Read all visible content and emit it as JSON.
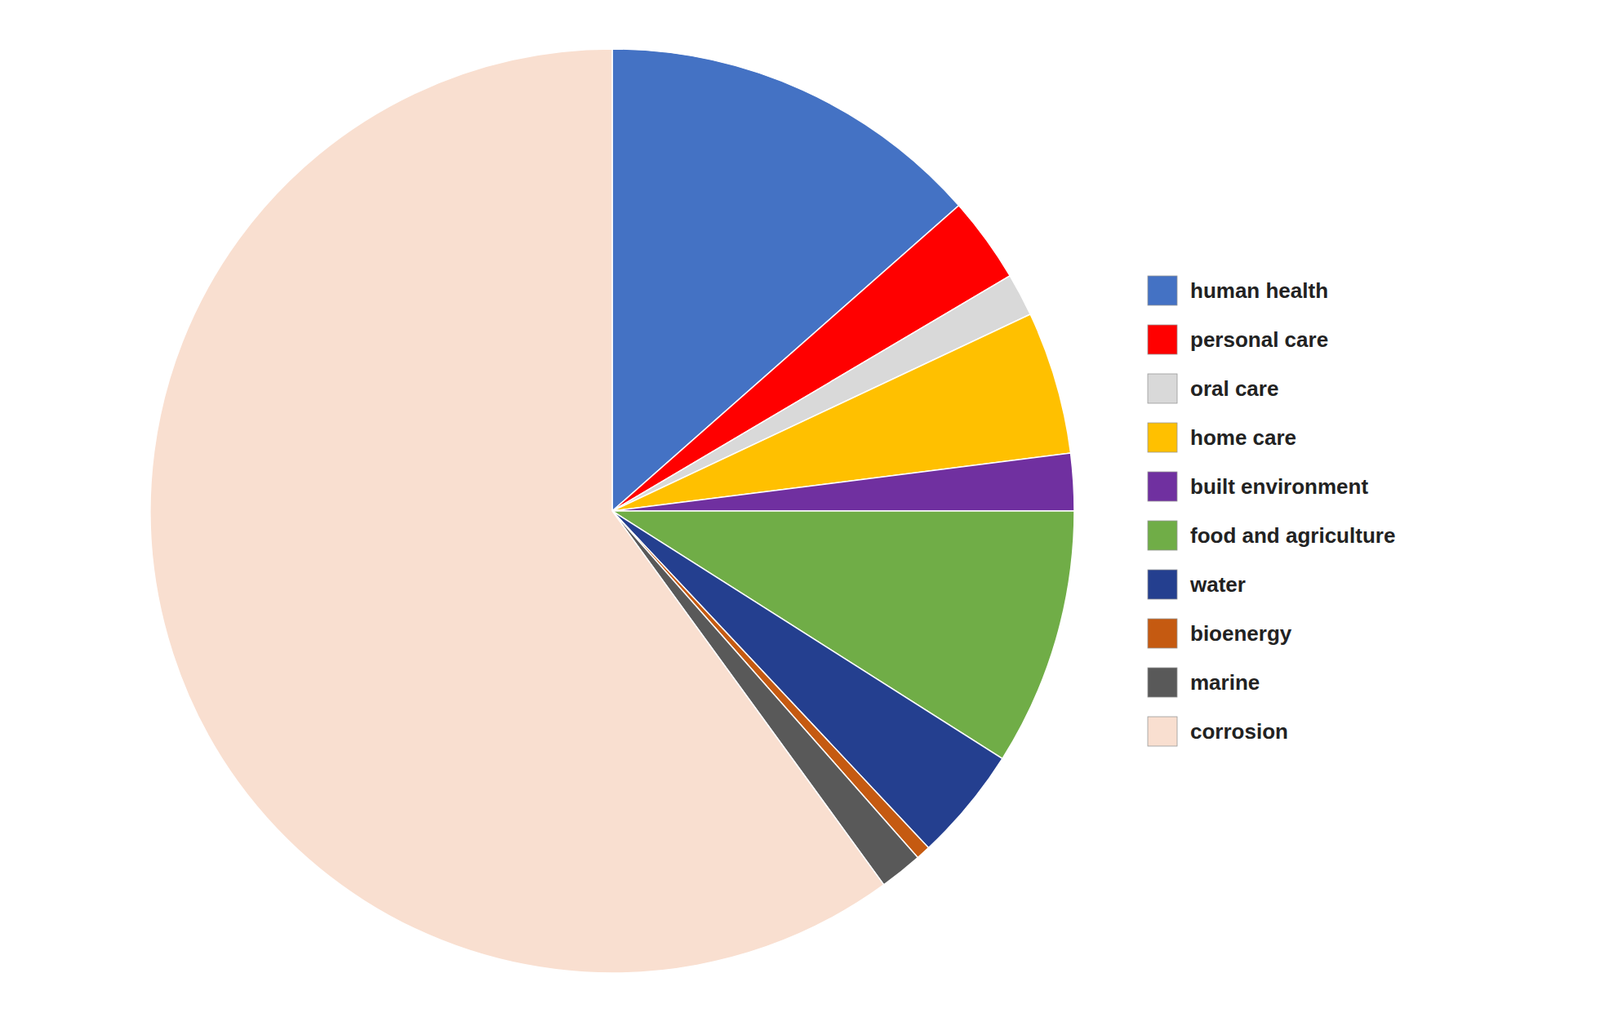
{
  "chart_data": {
    "type": "pie",
    "categories": [
      "human health",
      "personal care",
      "oral care",
      "home care",
      "built environment",
      "food and agriculture",
      "water",
      "bioenergy",
      "marine",
      "corrosion"
    ],
    "values": [
      13.5,
      3.0,
      1.5,
      5.0,
      2.0,
      9.0,
      4.0,
      0.5,
      1.5,
      60.0
    ],
    "colors": [
      "#4472C4",
      "#FF0000",
      "#D9D9D9",
      "#FFC000",
      "#7030A0",
      "#70AD47",
      "#243F8F",
      "#C55A11",
      "#595959",
      "#F9DFD0"
    ],
    "legend": "right"
  }
}
